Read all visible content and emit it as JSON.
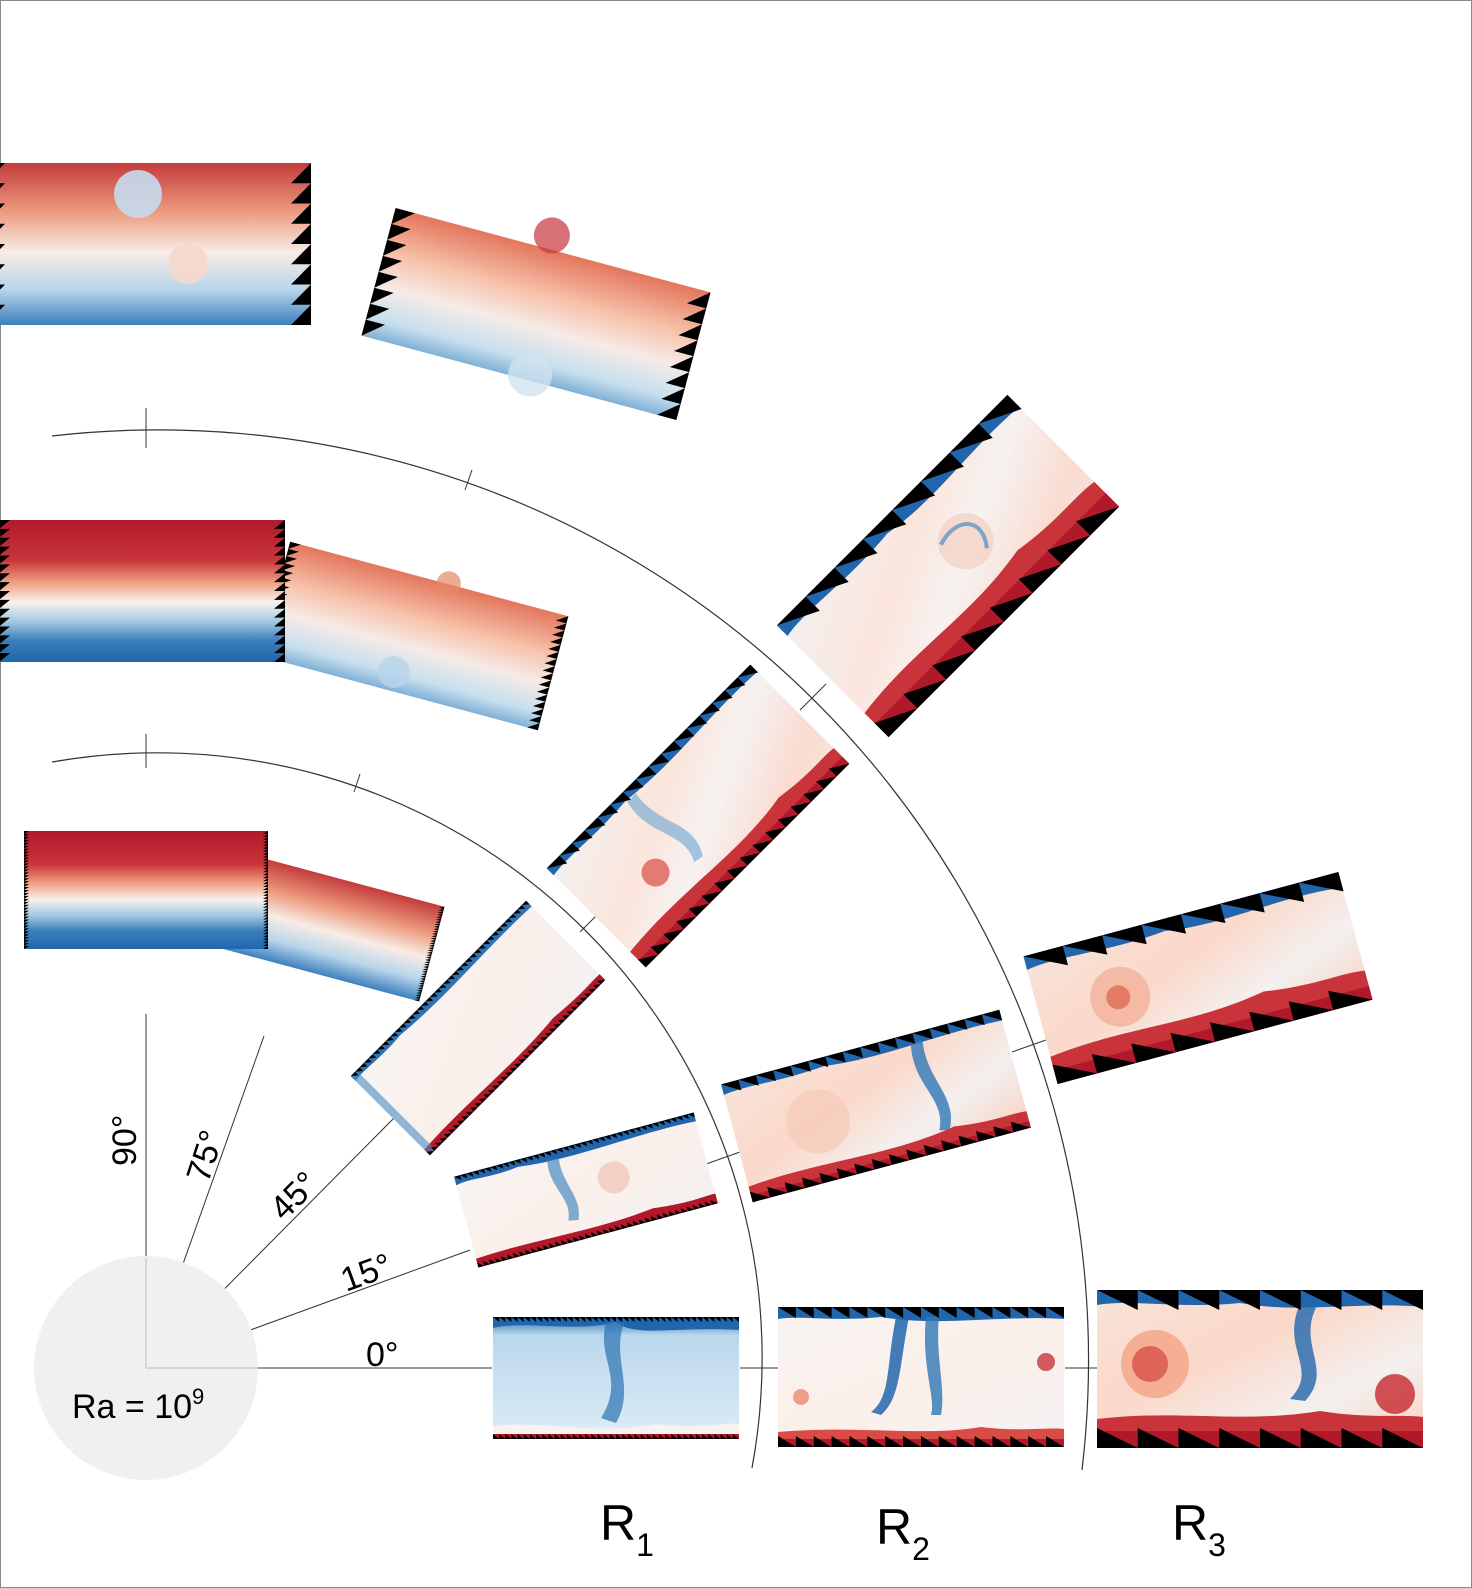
{
  "figure": {
    "ra_label": "Ra = 10",
    "ra_exponent": "9",
    "angles": [
      {
        "label": "0°",
        "degrees": 0
      },
      {
        "label": "15°",
        "degrees": 15
      },
      {
        "label": "45°",
        "degrees": 45
      },
      {
        "label": "75°",
        "degrees": 75
      },
      {
        "label": "90°",
        "degrees": 90
      }
    ],
    "roughness": [
      {
        "letter": "R",
        "sub": "1"
      },
      {
        "letter": "R",
        "sub": "2"
      },
      {
        "letter": "R",
        "sub": "3"
      }
    ],
    "colors": {
      "hot": "#b0192a",
      "warm": "#ef8a6a",
      "neutral": "#f7f4f2",
      "cool": "#a7cde6",
      "cold": "#2166ac",
      "roughness_elements": "#000000",
      "hub": "#f0f0f0",
      "lines": "#333333"
    }
  }
}
